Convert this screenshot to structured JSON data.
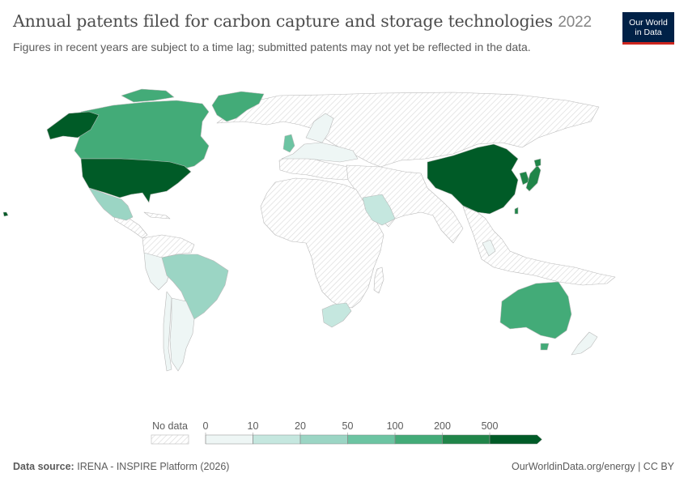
{
  "header": {
    "title": "Annual patents filed for carbon capture and storage technologies",
    "year": "2022",
    "subtitle": "Figures in recent years are subject to a time lag; submitted patents may not yet be reflected in the data."
  },
  "logo": {
    "line1": "Our World",
    "line2": "in Data"
  },
  "legend": {
    "no_data_label": "No data",
    "ticks": [
      "0",
      "10",
      "20",
      "50",
      "100",
      "200",
      "500"
    ],
    "colors": [
      "#eef6f5",
      "#c5e7df",
      "#9bd5c4",
      "#6cc4a2",
      "#43ab78",
      "#208549",
      "#005b27"
    ]
  },
  "map_data": {
    "metric": "Annual patents filed for carbon capture and storage technologies",
    "countries": [
      {
        "name": "United States",
        "bin": "500+"
      },
      {
        "name": "China",
        "bin": "500+"
      },
      {
        "name": "Canada",
        "bin": "100-200"
      },
      {
        "name": "Japan",
        "bin": "200-500"
      },
      {
        "name": "South Korea",
        "bin": "200-500"
      },
      {
        "name": "Australia",
        "bin": "100-200"
      },
      {
        "name": "Greenland",
        "bin": "100-200"
      },
      {
        "name": "Mexico",
        "bin": "20-50"
      },
      {
        "name": "Brazil",
        "bin": "20-50"
      },
      {
        "name": "Saudi Arabia",
        "bin": "10-20"
      },
      {
        "name": "South Africa",
        "bin": "10-20"
      },
      {
        "name": "United Kingdom",
        "bin": "50-100"
      },
      {
        "name": "Germany",
        "bin": "10-20"
      },
      {
        "name": "Chile",
        "bin": "0-10"
      },
      {
        "name": "Argentina",
        "bin": "0-10"
      },
      {
        "name": "New Zealand",
        "bin": "0-10"
      }
    ]
  },
  "footer": {
    "source_label": "Data source:",
    "source_text": "IRENA - INSPIRE Platform (2026)",
    "right_text": "OurWorldinData.org/energy | CC BY"
  }
}
